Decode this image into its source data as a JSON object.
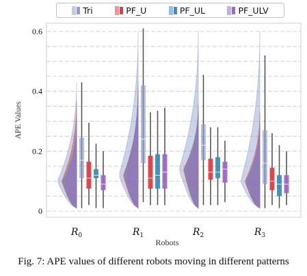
{
  "chart_data": {
    "type": "violin-box",
    "ylabel": "APE Values",
    "xlabel": "Robots",
    "ylim": [
      0,
      0.6
    ],
    "yticks": [
      "0",
      "0.2",
      "0.4",
      "0.6"
    ],
    "grid": "dashed horizontal",
    "legend_placement": "top",
    "categories": [
      "R_0",
      "R_1",
      "R_2",
      "R_3"
    ],
    "category_labels": [
      {
        "main": "R",
        "sub": "0"
      },
      {
        "main": "R",
        "sub": "1"
      },
      {
        "main": "R",
        "sub": "2"
      },
      {
        "main": "R",
        "sub": "3"
      }
    ],
    "series": [
      {
        "name": "Tri",
        "color": "#8e9ccc",
        "box": [
          {
            "min": 0.01,
            "q1": 0.11,
            "median": 0.17,
            "q3": 0.245,
            "max": 0.43
          },
          {
            "min": 0.03,
            "q1": 0.16,
            "median": 0.24,
            "q3": 0.42,
            "max": 0.61
          },
          {
            "min": 0.02,
            "q1": 0.17,
            "median": 0.22,
            "q3": 0.29,
            "max": 0.455
          },
          {
            "min": 0.01,
            "q1": 0.09,
            "median": 0.16,
            "q3": 0.27,
            "max": 0.52
          }
        ]
      },
      {
        "name": "PF_U",
        "color": "#d9434a",
        "box": [
          {
            "min": 0.02,
            "q1": 0.075,
            "median": 0.11,
            "q3": 0.165,
            "max": 0.295
          },
          {
            "min": 0.02,
            "q1": 0.075,
            "median": 0.11,
            "q3": 0.185,
            "max": 0.33
          },
          {
            "min": 0.02,
            "q1": 0.105,
            "median": 0.13,
            "q3": 0.175,
            "max": 0.28
          },
          {
            "min": 0.02,
            "q1": 0.07,
            "median": 0.1,
            "q3": 0.145,
            "max": 0.26
          }
        ]
      },
      {
        "name": "PF_UL",
        "color": "#3f8fb9",
        "box": [
          {
            "min": 0.01,
            "q1": 0.11,
            "median": 0.12,
            "q3": 0.14,
            "max": 0.225
          },
          {
            "min": 0.02,
            "q1": 0.075,
            "median": 0.12,
            "q3": 0.19,
            "max": 0.335
          },
          {
            "min": 0.02,
            "q1": 0.11,
            "median": 0.13,
            "q3": 0.18,
            "max": 0.28
          },
          {
            "min": 0.01,
            "q1": 0.05,
            "median": 0.09,
            "q3": 0.12,
            "max": 0.22
          }
        ]
      },
      {
        "name": "PF_ULV",
        "color": "#9b6bc6",
        "box": [
          {
            "min": 0.01,
            "q1": 0.07,
            "median": 0.09,
            "q3": 0.12,
            "max": 0.2
          },
          {
            "min": 0.02,
            "q1": 0.075,
            "median": 0.13,
            "q3": 0.19,
            "max": 0.345
          },
          {
            "min": 0.03,
            "q1": 0.095,
            "median": 0.14,
            "q3": 0.165,
            "max": 0.235
          },
          {
            "min": 0.02,
            "q1": 0.06,
            "median": 0.09,
            "q3": 0.12,
            "max": 0.2
          }
        ]
      }
    ],
    "violin_density": [
      {
        "range": [
          0.01,
          0.43
        ],
        "mode": 0.1
      },
      {
        "range": [
          0.01,
          0.6
        ],
        "mode": 0.12
      },
      {
        "range": [
          0.01,
          0.6
        ],
        "mode": 0.14
      },
      {
        "range": [
          0.01,
          0.6
        ],
        "mode": 0.1
      }
    ]
  },
  "caption": "Fig. 7: APE values of different robots moving in different patterns"
}
